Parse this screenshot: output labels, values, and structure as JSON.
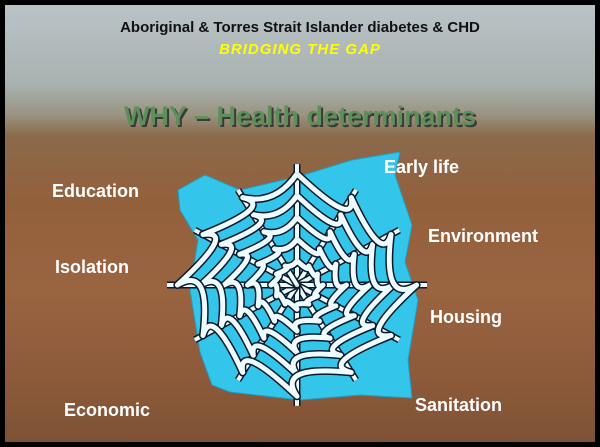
{
  "header": {
    "title": "Aboriginal & Torres Strait Islander diabetes & CHD",
    "subtitle": "BRIDGING THE GAP"
  },
  "heading": "WHY – Health determinants",
  "labels": [
    "Education",
    "Isolation",
    "Economic",
    "Early life",
    "Environment",
    "Housing",
    "Sanitation"
  ]
}
